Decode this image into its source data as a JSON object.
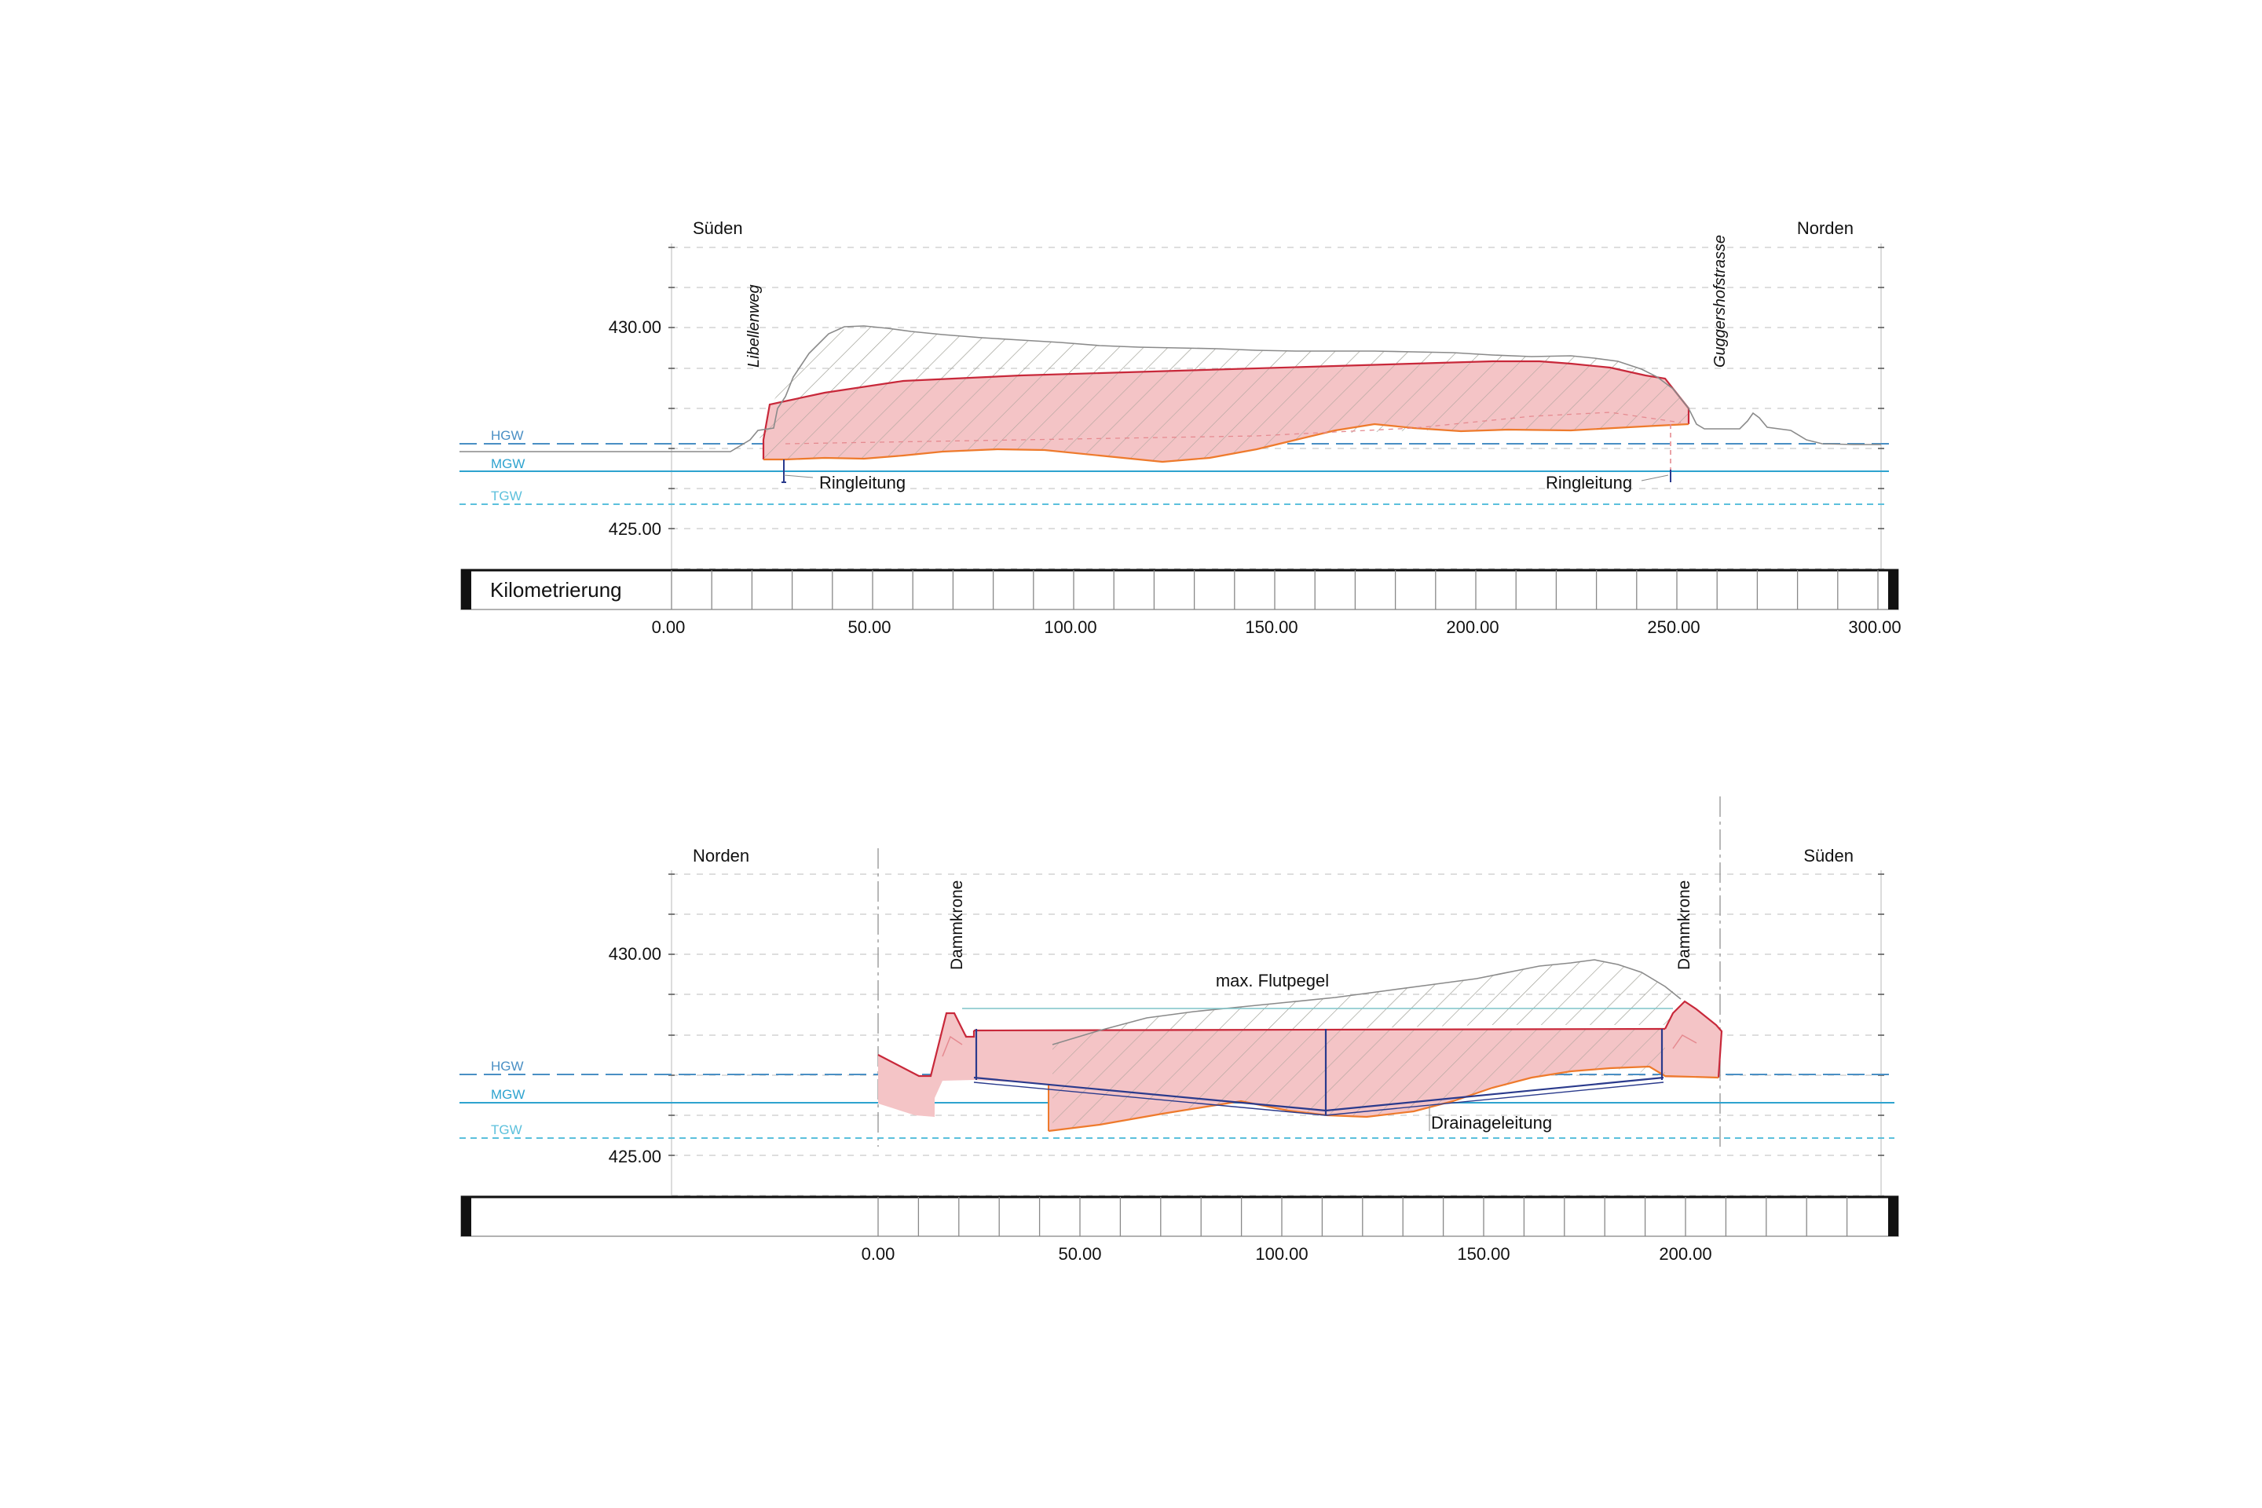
{
  "colors": {
    "hgw": "#4a8fc4",
    "mgw": "#2ea3cf",
    "tgw": "#5cc0dc",
    "fill_red": "#f4c4c6",
    "red_line": "#c8283a",
    "orange_line": "#ee7a2c",
    "navy": "#2a3a8c",
    "terrain": "#8a8a8a",
    "hatch": "#9a9a90",
    "flood": "#7fc4c8"
  },
  "section1": {
    "left_label": "Süden",
    "right_label": "Norden",
    "elev_labels": [
      "430.00",
      "425.00"
    ],
    "gw": [
      "HGW",
      "MGW",
      "TGW"
    ],
    "street_left": "Libellenweg",
    "street_right": "Guggershofstrasse",
    "pipe_left": "Ringleitung",
    "pipe_right": "Ringleitung",
    "scale_title": "Kilometrierung",
    "km_labels": [
      "0.00",
      "50.00",
      "100.00",
      "150.00",
      "200.00",
      "250.00",
      "300.00"
    ]
  },
  "section2": {
    "left_label": "Norden",
    "right_label": "Süden",
    "elev_labels": [
      "430.00",
      "425.00"
    ],
    "gw": [
      "HGW",
      "MGW",
      "TGW"
    ],
    "dam_left": "Dammkrone",
    "dam_right": "Dammkrone",
    "flood_label": "max. Flutpegel",
    "drain_label": "Drainageleitung",
    "km_labels": [
      "0.00",
      "50.00",
      "100.00",
      "150.00",
      "200.00"
    ]
  }
}
